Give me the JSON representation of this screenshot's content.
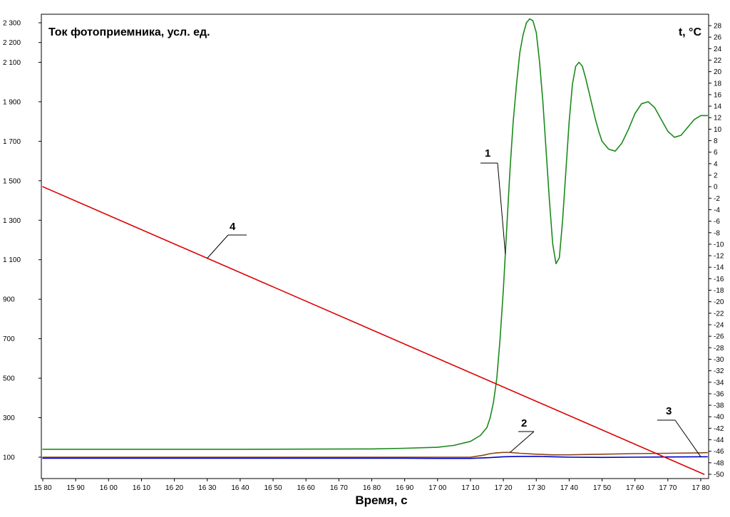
{
  "chart_data": {
    "type": "line",
    "title": "",
    "xlabel": "Время, с",
    "ylabel_left": "Ток фотоприемника, усл. ед.",
    "ylabel_right": "t, °C",
    "grid": false,
    "legend": "none",
    "x_ticks": [
      1580,
      1590,
      1600,
      1610,
      1620,
      1630,
      1640,
      1650,
      1660,
      1670,
      1680,
      1690,
      1700,
      1710,
      1720,
      1730,
      1740,
      1750,
      1760,
      1770,
      1780
    ],
    "x_tick_labels": [
      "15 80",
      "15 90",
      "16 00",
      "16 10",
      "16 20",
      "16 30",
      "16 40",
      "16 50",
      "16 60",
      "16 70",
      "16 80",
      "16 90",
      "17 00",
      "17 10",
      "17 20",
      "17 30",
      "17 40",
      "17 50",
      "17 60",
      "17 70",
      "17 80"
    ],
    "xlim": [
      1580,
      1782
    ],
    "y_left_ticks": [
      100,
      300,
      500,
      700,
      900,
      1100,
      1300,
      1500,
      1700,
      1900,
      2100,
      2200,
      2300
    ],
    "y_left_tick_labels": [
      "100",
      "300",
      "500",
      "700",
      "900",
      "1 100",
      "1 300",
      "1 500",
      "1 700",
      "1 900",
      "2 100",
      "2 200",
      "2 300"
    ],
    "y_right_ticks": [
      -50,
      -48,
      -46,
      -44,
      -42,
      -40,
      -38,
      -36,
      -34,
      -32,
      -30,
      -28,
      -26,
      -24,
      -22,
      -20,
      -18,
      -16,
      -14,
      -12,
      -10,
      -8,
      -6,
      -4,
      -2,
      0,
      2,
      4,
      6,
      8,
      10,
      12,
      14,
      16,
      18,
      20,
      22,
      24,
      26,
      28
    ],
    "y_right_tick_labels": [
      "-50",
      "-48",
      "-46",
      "-44",
      "-42",
      "-40",
      "-38",
      "-36",
      "-34",
      "-32",
      "-30",
      "-28",
      "-26",
      "-24",
      "-22",
      "-20",
      "-18",
      "-16",
      "-14",
      "-12",
      "-10",
      "-8",
      "-6",
      "-4",
      "-2",
      "0",
      "2",
      "4",
      "6",
      "8",
      "10",
      "12",
      "14",
      "16",
      "18",
      "20",
      "22",
      "24",
      "26",
      "28"
    ],
    "series": [
      {
        "label": "1",
        "axis": "left",
        "color": "#1a8a1a",
        "x": [
          1580,
          1600,
          1640,
          1680,
          1690,
          1700,
          1705,
          1710,
          1713,
          1715,
          1716,
          1717,
          1718,
          1719,
          1720,
          1721,
          1722,
          1723,
          1724,
          1725,
          1726,
          1727,
          1728,
          1729,
          1730,
          1731,
          1732,
          1733,
          1734,
          1735,
          1736,
          1737,
          1738,
          1739,
          1740,
          1741,
          1742,
          1743,
          1744,
          1745,
          1746,
          1747,
          1748,
          1749,
          1750,
          1752,
          1754,
          1756,
          1758,
          1760,
          1762,
          1764,
          1766,
          1768,
          1770,
          1772,
          1774,
          1776,
          1778,
          1780,
          1782
        ],
        "y": [
          140,
          140,
          140,
          142,
          145,
          150,
          160,
          180,
          210,
          250,
          300,
          380,
          500,
          700,
          950,
          1250,
          1550,
          1800,
          1990,
          2150,
          2240,
          2300,
          2320,
          2310,
          2250,
          2100,
          1900,
          1650,
          1400,
          1180,
          1080,
          1110,
          1300,
          1550,
          1800,
          1990,
          2080,
          2100,
          2080,
          2020,
          1950,
          1880,
          1810,
          1750,
          1700,
          1660,
          1650,
          1690,
          1760,
          1840,
          1890,
          1900,
          1870,
          1810,
          1750,
          1720,
          1730,
          1770,
          1810,
          1830,
          1830
        ]
      },
      {
        "label": "2",
        "axis": "left",
        "color": "#8b4513",
        "x": [
          1580,
          1600,
          1650,
          1690,
          1700,
          1710,
          1714,
          1716,
          1718,
          1720,
          1722,
          1725,
          1730,
          1735,
          1740,
          1750,
          1760,
          1770,
          1780,
          1782
        ],
        "y": [
          100,
          100,
          100,
          100,
          100,
          100,
          110,
          118,
          122,
          124,
          124,
          120,
          115,
          112,
          112,
          115,
          118,
          120,
          122,
          123
        ]
      },
      {
        "label": "3",
        "axis": "left",
        "color": "#0000cc",
        "x": [
          1580,
          1600,
          1650,
          1690,
          1700,
          1710,
          1716,
          1720,
          1725,
          1730,
          1735,
          1740,
          1750,
          1760,
          1770,
          1780,
          1782
        ],
        "y": [
          95,
          95,
          95,
          95,
          94,
          94,
          98,
          102,
          104,
          104,
          102,
          100,
          99,
          100,
          101,
          102,
          102
        ]
      },
      {
        "label": "4",
        "axis": "right",
        "color": "#dd0000",
        "x": [
          1580,
          1781
        ],
        "y": [
          0,
          -50
        ]
      }
    ],
    "annotations": [
      "1",
      "2",
      "3",
      "4"
    ]
  }
}
